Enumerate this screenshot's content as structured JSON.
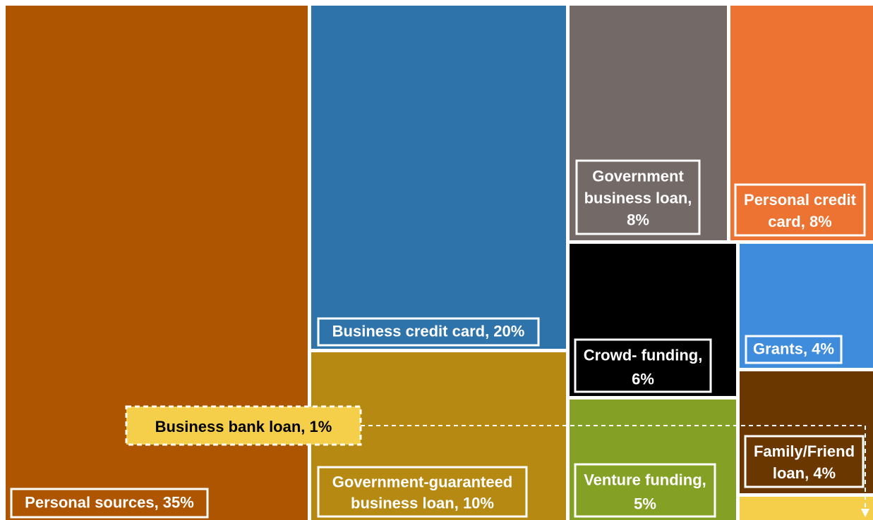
{
  "chart_data": {
    "type": "treemap",
    "units": "%",
    "items": [
      {
        "label": "Personal sources",
        "value": 35,
        "display": "Personal sources, 35%",
        "color": "#AD5500",
        "text_color": "#FFFFFF"
      },
      {
        "label": "Business credit card",
        "value": 20,
        "display": "Business credit card, 20%",
        "color": "#2E73AA",
        "text_color": "#FFFFFF"
      },
      {
        "label": "Government-guaranteed business loan",
        "value": 10,
        "display": [
          "Government-guaranteed",
          "business loan, 10%"
        ],
        "color": "#B68912",
        "text_color": "#FFFFFF"
      },
      {
        "label": "Government business loan",
        "value": 8,
        "display": [
          "Government",
          "business loan,",
          "8%"
        ],
        "color": "#736A68",
        "text_color": "#FFFFFF"
      },
      {
        "label": "Personal credit card",
        "value": 8,
        "display": [
          "Personal credit",
          "card, 8%"
        ],
        "color": "#EC7331",
        "text_color": "#FFFFFF"
      },
      {
        "label": "Crowd- funding",
        "value": 6,
        "display": [
          "Crowd- funding,",
          "6%"
        ],
        "color": "#000000",
        "text_color": "#FFFFFF"
      },
      {
        "label": "Venture funding",
        "value": 5,
        "display": [
          "Venture funding,",
          "5%"
        ],
        "color": "#84A025",
        "text_color": "#FFFFFF"
      },
      {
        "label": "Grants",
        "value": 4,
        "display": "Grants, 4%",
        "color": "#3E8CDB",
        "text_color": "#FFFFFF"
      },
      {
        "label": "Family/Friend loan",
        "value": 4,
        "display": [
          "Family/Friend",
          "loan, 4%"
        ],
        "color": "#6B3701",
        "text_color": "#FFFFFF"
      },
      {
        "label": "Business bank loan",
        "value": 1,
        "display": "Business bank loan, 1%",
        "color": "#F5CF4A",
        "text_color": "#000000"
      }
    ]
  }
}
